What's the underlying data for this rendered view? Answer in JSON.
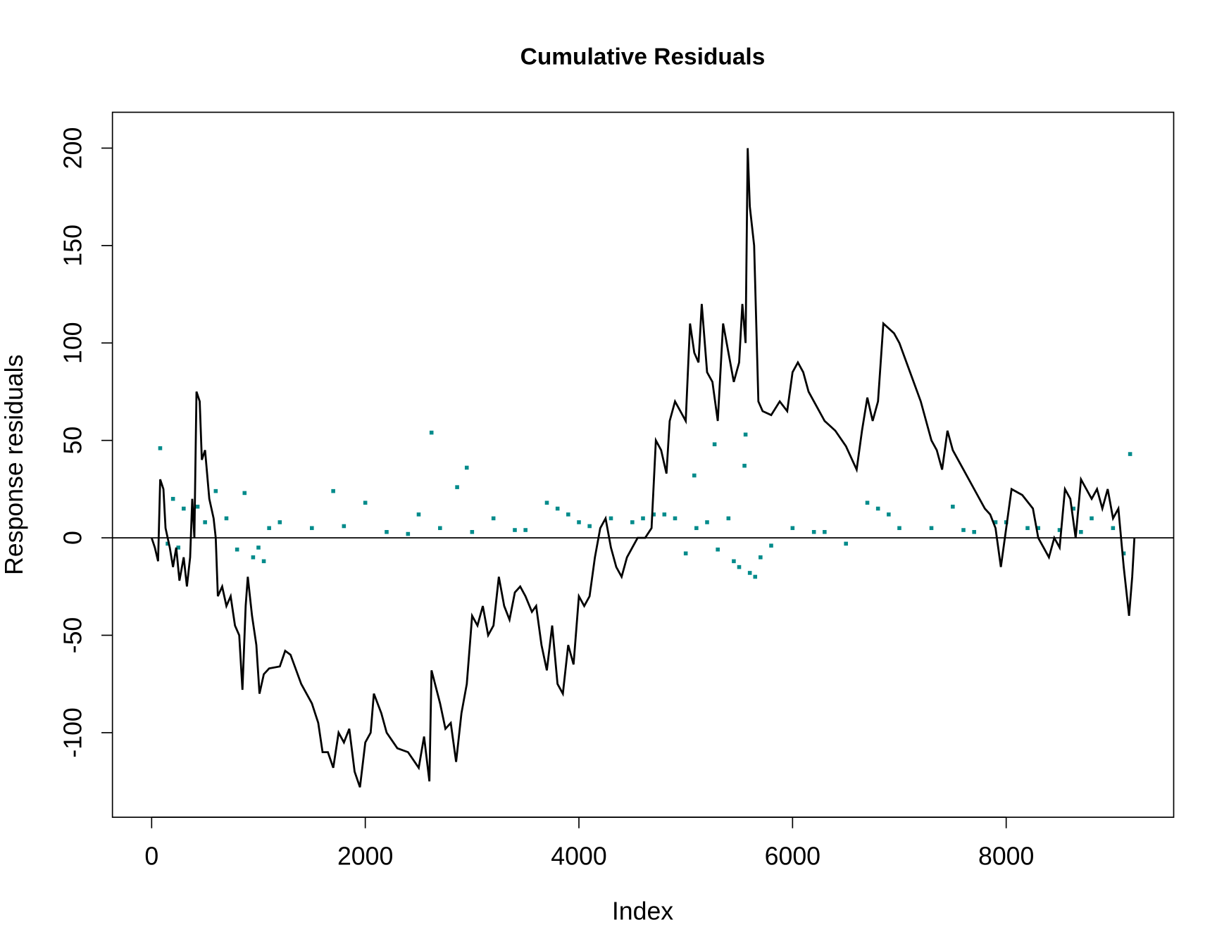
{
  "chart_data": {
    "type": "line",
    "title": "Cumulative Residuals",
    "x_label": "Index",
    "y_label": "Response   residuals",
    "xlim": [
      -367,
      9568
    ],
    "ylim": [
      -143.4,
      218.4
    ],
    "xticks": [
      0,
      2000,
      4000,
      6000,
      8000
    ],
    "yticks": [
      -100,
      -50,
      0,
      50,
      100,
      150,
      200
    ],
    "hline": 0,
    "series": [
      {
        "type": "line",
        "color": "#000000",
        "x": [
          0,
          30,
          60,
          80,
          110,
          130,
          170,
          200,
          230,
          260,
          300,
          330,
          360,
          380,
          400,
          420,
          450,
          470,
          500,
          540,
          580,
          600,
          620,
          660,
          700,
          740,
          780,
          820,
          850,
          880,
          900,
          940,
          980,
          1010,
          1050,
          1100,
          1200,
          1250,
          1300,
          1400,
          1500,
          1560,
          1600,
          1650,
          1700,
          1750,
          1800,
          1850,
          1900,
          1950,
          2000,
          2050,
          2080,
          2150,
          2200,
          2300,
          2400,
          2500,
          2550,
          2600,
          2620,
          2700,
          2750,
          2800,
          2850,
          2900,
          2950,
          3000,
          3050,
          3100,
          3150,
          3200,
          3250,
          3300,
          3350,
          3400,
          3450,
          3500,
          3560,
          3600,
          3650,
          3700,
          3750,
          3800,
          3850,
          3900,
          3950,
          4000,
          4050,
          4100,
          4150,
          4200,
          4250,
          4300,
          4350,
          4400,
          4450,
          4500,
          4550,
          4620,
          4680,
          4720,
          4770,
          4820,
          4850,
          4900,
          4950,
          5000,
          5040,
          5080,
          5120,
          5150,
          5200,
          5250,
          5300,
          5350,
          5400,
          5450,
          5500,
          5530,
          5560,
          5580,
          5600,
          5640,
          5680,
          5720,
          5800,
          5880,
          5950,
          6000,
          6050,
          6100,
          6150,
          6200,
          6300,
          6400,
          6500,
          6600,
          6650,
          6700,
          6750,
          6800,
          6850,
          6950,
          7000,
          7100,
          7200,
          7300,
          7350,
          7400,
          7450,
          7500,
          7600,
          7700,
          7800,
          7850,
          7900,
          7950,
          8000,
          8050,
          8150,
          8250,
          8300,
          8350,
          8400,
          8450,
          8500,
          8550,
          8600,
          8650,
          8700,
          8750,
          8800,
          8850,
          8900,
          8950,
          9000,
          9050,
          9100,
          9150,
          9180,
          9200
        ],
        "values": [
          0,
          -5,
          -12,
          30,
          25,
          5,
          -5,
          -15,
          -5,
          -22,
          -10,
          -25,
          -10,
          20,
          0,
          75,
          70,
          40,
          45,
          20,
          10,
          0,
          -30,
          -25,
          -35,
          -30,
          -45,
          -50,
          -78,
          -35,
          -20,
          -40,
          -55,
          -80,
          -70,
          -67,
          -66,
          -58,
          -60,
          -75,
          -85,
          -95,
          -110,
          -110,
          -118,
          -100,
          -105,
          -98,
          -120,
          -128,
          -105,
          -100,
          -80,
          -90,
          -100,
          -108,
          -110,
          -118,
          -102,
          -125,
          -68,
          -85,
          -98,
          -95,
          -115,
          -90,
          -75,
          -40,
          -45,
          -35,
          -50,
          -45,
          -20,
          -35,
          -42,
          -28,
          -25,
          -30,
          -38,
          -35,
          -55,
          -68,
          -45,
          -75,
          -80,
          -55,
          -65,
          -30,
          -35,
          -30,
          -10,
          5,
          10,
          -5,
          -15,
          -20,
          -10,
          -5,
          0,
          0,
          5,
          50,
          45,
          33,
          60,
          70,
          65,
          60,
          110,
          95,
          90,
          120,
          85,
          80,
          60,
          110,
          95,
          80,
          90,
          120,
          100,
          200,
          170,
          150,
          70,
          65,
          63,
          70,
          65,
          85,
          90,
          85,
          75,
          70,
          60,
          55,
          47,
          35,
          55,
          72,
          60,
          70,
          110,
          105,
          100,
          85,
          70,
          50,
          45,
          35,
          55,
          45,
          35,
          25,
          15,
          12,
          5,
          -15,
          5,
          25,
          22,
          15,
          0,
          -5,
          -10,
          0,
          -5,
          25,
          20,
          0,
          30,
          25,
          20,
          25,
          15,
          25,
          10,
          15,
          -15,
          -40,
          -20,
          0
        ]
      },
      {
        "type": "scatter",
        "color": "#008b8b",
        "x": [
          80,
          2620,
          2950,
          5270,
          5560,
          5550,
          9160,
          1700,
          870,
          5080,
          2860,
          430,
          7500,
          8630,
          600,
          950,
          1000,
          1050,
          300,
          200,
          700,
          1200,
          1500,
          2000,
          2200,
          2400,
          2700,
          3200,
          3500,
          3700,
          3800,
          3900,
          4100,
          4300,
          4500,
          4800,
          4900,
          5000,
          5200,
          5400,
          5450,
          5500,
          5600,
          5650,
          5700,
          6000,
          6300,
          6700,
          6800,
          6900,
          7300,
          7700,
          8000,
          8300,
          8500,
          8800,
          9000,
          9100,
          150,
          250,
          500,
          800,
          1100,
          1800,
          2500,
          3000,
          3400,
          4000,
          4600,
          4700,
          5100,
          5300,
          5800,
          6200,
          6500,
          7000,
          7600,
          7900,
          8200,
          8700
        ],
        "values": [
          46,
          54,
          36,
          48,
          53,
          37,
          43,
          24,
          23,
          32,
          26,
          16,
          16,
          15,
          24,
          -10,
          -5,
          -12,
          15,
          20,
          10,
          8,
          5,
          18,
          3,
          2,
          5,
          10,
          4,
          18,
          15,
          12,
          6,
          10,
          8,
          12,
          10,
          -8,
          8,
          10,
          -12,
          -15,
          -18,
          -20,
          -10,
          5,
          3,
          18,
          15,
          12,
          5,
          3,
          8,
          5,
          4,
          10,
          5,
          -8,
          -3,
          -5,
          8,
          -6,
          5,
          6,
          12,
          3,
          4,
          8,
          10,
          12,
          5,
          -6,
          -4,
          3,
          -3,
          5,
          4,
          8,
          5,
          3
        ]
      }
    ]
  }
}
